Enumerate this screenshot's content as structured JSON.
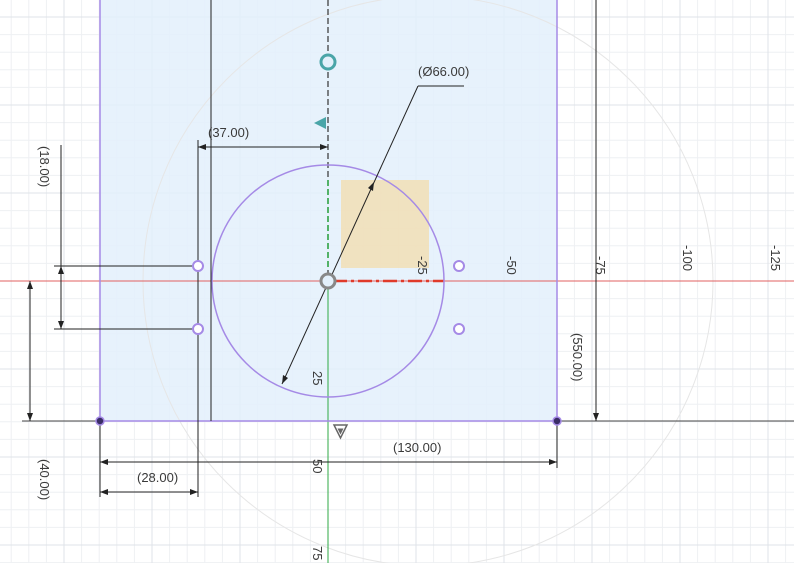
{
  "dimensions": {
    "diameter": "(Ø66.00)",
    "width_37": "(37.00)",
    "height_18": "(18.00)",
    "width_130": "(130.00)",
    "width_28": "(28.00)",
    "height_40": "(40.00)",
    "height_550": "(550.00)"
  },
  "axis_ticks": {
    "horizontal": [
      "-25",
      "-50",
      "-75",
      "-100",
      "-125"
    ],
    "vertical": [
      "25",
      "50",
      "75"
    ]
  },
  "colors": {
    "sketch_profile": "#a58ae6",
    "profile_fill": "#e3f0fb",
    "x_axis": "#e06060",
    "y_axis": "#2faa44",
    "highlight_square": "#f3ddb0",
    "constraint_icon": "#4aa5a8"
  }
}
